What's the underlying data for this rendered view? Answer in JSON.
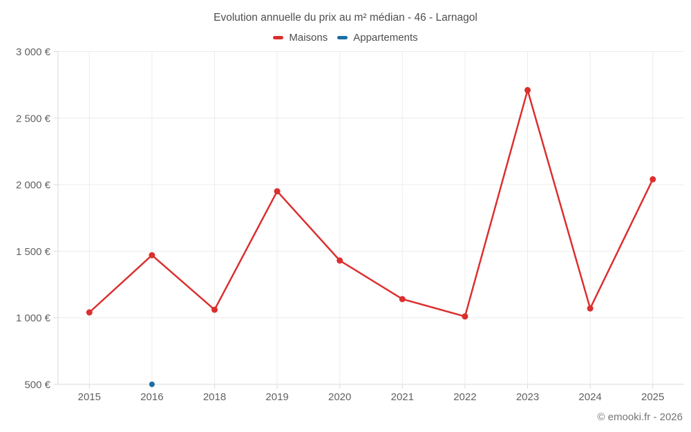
{
  "page": {
    "footer": "© emooki.fr - 2026"
  },
  "chart_data": {
    "type": "line",
    "title": "Evolution annuelle du prix au m² médian - 46 - Larnagol",
    "categories": [
      "2015",
      "2016",
      "2018",
      "2019",
      "2020",
      "2021",
      "2022",
      "2023",
      "2024",
      "2025"
    ],
    "series": [
      {
        "name": "Maisons",
        "color": "#dc2e2e",
        "values": [
          1040,
          1470,
          1060,
          1950,
          1430,
          1140,
          1010,
          2710,
          1070,
          2040
        ]
      },
      {
        "name": "Appartements",
        "color": "#1b6ea5",
        "values": [
          null,
          500,
          null,
          null,
          null,
          null,
          null,
          null,
          null,
          null
        ]
      }
    ],
    "ylabel": "",
    "xlabel": "",
    "ylim": [
      500,
      3000
    ],
    "ytick_step": 500,
    "ytick_labels": [
      "500 €",
      "1 000 €",
      "1 500 €",
      "2 000 €",
      "2 500 €",
      "3 000 €"
    ],
    "grid": true,
    "legend_position": "top"
  }
}
